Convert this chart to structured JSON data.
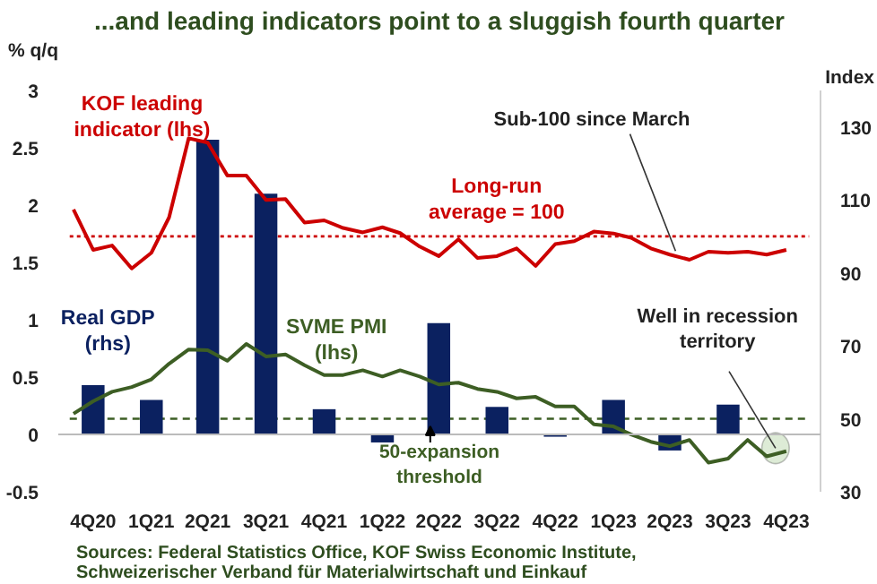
{
  "chart_data": {
    "type": "bar",
    "title": "...and leading indicators point to a sluggish fourth quarter",
    "ylabel": "% q/q",
    "y2label": "Index",
    "xlim": [
      "2020-09-07",
      "2023-12-25"
    ],
    "xticks": [
      {
        "value": "2020-11",
        "label": "4Q20"
      },
      {
        "value": "2021-02",
        "label": "1Q21"
      },
      {
        "value": "2021-05",
        "label": "2Q21"
      },
      {
        "value": "2021-08",
        "label": "3Q21"
      },
      {
        "value": "2021-11",
        "label": "4Q21"
      },
      {
        "value": "2022-02",
        "label": "1Q22"
      },
      {
        "value": "2022-05",
        "label": "2Q22"
      },
      {
        "value": "2022-08",
        "label": "3Q22"
      },
      {
        "value": "2022-11",
        "label": "4Q22"
      },
      {
        "value": "2023-02",
        "label": "1Q23"
      },
      {
        "value": "2023-05",
        "label": "2Q23"
      },
      {
        "value": "2023-08",
        "label": "3Q23"
      },
      {
        "value": "2023-11",
        "label": "4Q23"
      }
    ],
    "series": [
      {
        "name": "Real GDP (rhs)",
        "color": "#0b2160",
        "x": [
          "2020-11",
          "2021-02",
          "2021-05",
          "2021-08",
          "2021-11",
          "2022-02",
          "2022-05",
          "2022-08",
          "2022-11",
          "2023-02",
          "2023-05",
          "2023-08"
        ],
        "values": [
          0.43,
          0.3,
          2.57,
          2.1,
          0.22,
          -0.07,
          0.97,
          0.24,
          -0.02,
          0.3,
          -0.14,
          0.26
        ]
      },
      {
        "name": "KOF leading indicator (lhs)",
        "type": "line",
        "axis": "y2",
        "color": "#cc0000",
        "x": [
          "2020-10",
          "2020-11",
          "2020-12",
          "2021-01",
          "2021-02",
          "2021-03",
          "2021-04",
          "2021-05",
          "2021-06",
          "2021-07",
          "2021-08",
          "2021-09",
          "2021-10",
          "2021-11",
          "2021-12",
          "2022-01",
          "2022-02",
          "2022-03",
          "2022-04",
          "2022-05",
          "2022-06",
          "2022-07",
          "2022-08",
          "2022-09",
          "2022-10",
          "2022-11",
          "2022-12",
          "2023-01",
          "2023-02",
          "2023-03",
          "2023-04",
          "2023-05",
          "2023-06",
          "2023-07",
          "2023-08",
          "2023-09",
          "2023-10",
          "2023-11"
        ],
        "values": [
          107.4,
          96.3,
          97.5,
          91.2,
          95.5,
          105.2,
          126.9,
          125.7,
          116.7,
          116.7,
          110.0,
          110.2,
          103.8,
          104.4,
          102.3,
          101.1,
          102.5,
          100.9,
          97.2,
          94.6,
          99.2,
          94.1,
          94.6,
          96.7,
          91.9,
          97.9,
          98.7,
          101.3,
          100.8,
          99.6,
          96.7,
          95.0,
          93.6,
          95.8,
          95.5,
          95.8,
          95.0,
          96.3
        ]
      },
      {
        "name": "SVME PMI (lhs)",
        "type": "line",
        "axis": "y2",
        "color": "#3d5e24",
        "x": [
          "2020-10",
          "2020-11",
          "2020-12",
          "2021-01",
          "2021-02",
          "2021-03",
          "2021-04",
          "2021-05",
          "2021-06",
          "2021-07",
          "2021-08",
          "2021-09",
          "2021-10",
          "2021-11",
          "2021-12",
          "2022-01",
          "2022-02",
          "2022-03",
          "2022-04",
          "2022-05",
          "2022-06",
          "2022-07",
          "2022-08",
          "2022-09",
          "2022-10",
          "2022-11",
          "2022-12",
          "2023-01",
          "2023-02",
          "2023-03",
          "2023-04",
          "2023-05",
          "2023-06",
          "2023-07",
          "2023-08",
          "2023-09",
          "2023-10",
          "2023-11"
        ],
        "values": [
          51.4,
          54.8,
          57.4,
          58.7,
          60.8,
          65.1,
          69.0,
          68.8,
          65.9,
          70.5,
          67.1,
          67.6,
          64.7,
          62.0,
          62.0,
          63.3,
          61.6,
          63.3,
          61.6,
          59.4,
          59.9,
          58.2,
          57.4,
          55.6,
          56.0,
          53.4,
          53.4,
          48.5,
          47.9,
          45.7,
          43.7,
          42.5,
          44.2,
          38.0,
          39.1,
          44.2,
          39.7,
          41.1
        ]
      }
    ],
    "ylim": [
      -0.5,
      3
    ],
    "yticks": [
      -0.5,
      0,
      0.5,
      1,
      1.5,
      2,
      2.5,
      3
    ],
    "y2lim": [
      30,
      140
    ],
    "y2ticks": [
      30,
      50,
      70,
      90,
      110,
      130
    ],
    "ref_lines": [
      {
        "axis": "y2",
        "value": 100,
        "label": "Long-run average = 100",
        "color": "#cc0000",
        "line_style": "dotted"
      },
      {
        "axis": "y2",
        "value": 50,
        "label": "50-expansion threshold",
        "color": "#3d5e24",
        "line_style": "dashed"
      }
    ],
    "annotations": [
      {
        "text": "Sub-100 since March",
        "x": "2023-05-10",
        "y": 1.6
      },
      {
        "text": "Well in recession territory",
        "x": "2023-10-15",
        "y": -0.12
      },
      "Sources: Federal Statistics Office, KOF Swiss Economic Institute,\nSchweizerischer Verband für Materialwirtschaft und Einkauf"
    ],
    "grid": false
  }
}
